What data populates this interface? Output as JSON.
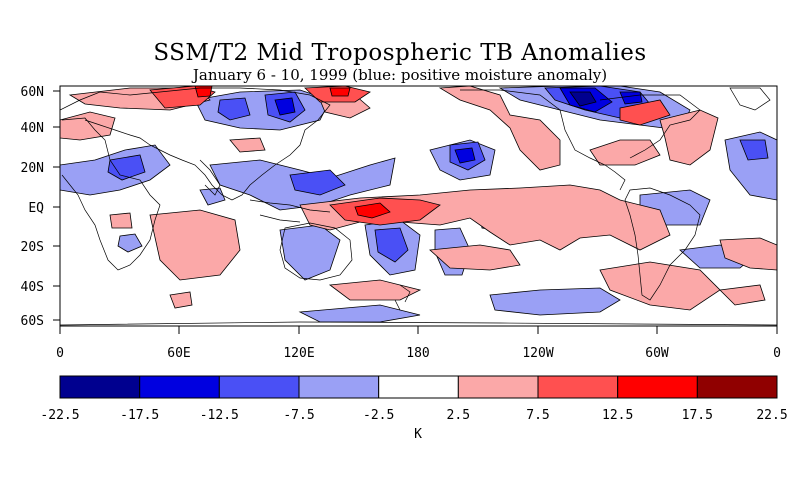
{
  "title": "SSM/T2 Mid Tropospheric TB Anomalies",
  "subtitle": "January 6 - 10, 1999 (blue: positive moisture anomaly)",
  "lat_labels": [
    "60N",
    "40N",
    "20N",
    "EQ",
    "20S",
    "40S",
    "60S"
  ],
  "lon_labels": [
    "0",
    "60E",
    "120E",
    "180",
    "120W",
    "60W",
    "0"
  ],
  "colorbar": {
    "ticks": [
      "-22.5",
      "-17.5",
      "-12.5",
      "-7.5",
      "-2.5",
      "2.5",
      "7.5",
      "12.5",
      "17.5",
      "22.5"
    ],
    "colors": [
      "#00008f",
      "#0000e0",
      "#4a50f5",
      "#9aa0f5",
      "#ffffff",
      "#fba8a8",
      "#ff5050",
      "#ff0000",
      "#900000"
    ],
    "unit": "K"
  }
}
